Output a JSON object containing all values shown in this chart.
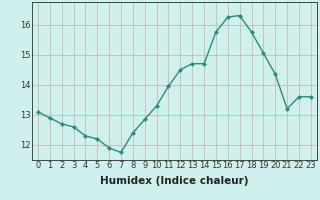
{
  "x": [
    0,
    1,
    2,
    3,
    4,
    5,
    6,
    7,
    8,
    9,
    10,
    11,
    12,
    13,
    14,
    15,
    16,
    17,
    18,
    19,
    20,
    21,
    22,
    23
  ],
  "y": [
    13.1,
    12.9,
    12.7,
    12.6,
    12.3,
    12.2,
    11.9,
    11.75,
    12.4,
    12.85,
    13.3,
    13.95,
    14.5,
    14.7,
    14.7,
    15.75,
    16.25,
    16.3,
    15.75,
    15.05,
    14.35,
    13.2,
    13.6,
    13.6
  ],
  "line_color": "#2e8b7a",
  "marker": "D",
  "markersize": 2.0,
  "linewidth": 1.0,
  "bg_color": "#cff0ec",
  "grid_color": "#c8b8b8",
  "xlabel": "Humidex (Indice chaleur)",
  "xlabel_fontsize": 7.5,
  "ylim": [
    11.5,
    16.75
  ],
  "xlim": [
    -0.5,
    23.5
  ],
  "yticks": [
    12,
    13,
    14,
    15,
    16
  ],
  "xticks": [
    0,
    1,
    2,
    3,
    4,
    5,
    6,
    7,
    8,
    9,
    10,
    11,
    12,
    13,
    14,
    15,
    16,
    17,
    18,
    19,
    20,
    21,
    22,
    23
  ],
  "tick_fontsize": 6.0
}
